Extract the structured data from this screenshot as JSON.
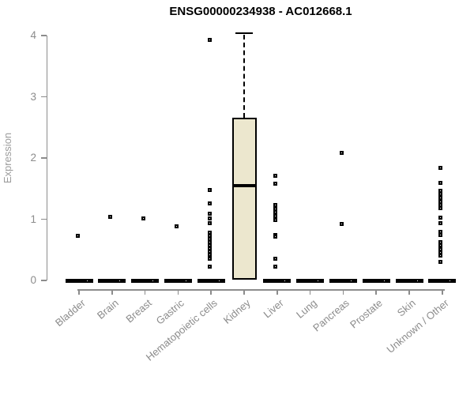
{
  "page": {
    "background": "#ffffff"
  },
  "chart_data": {
    "type": "boxplot",
    "title": "ENSG00000234938 - AC012668.1",
    "ylabel": "Expression",
    "xlabel": "",
    "ylim": [
      0,
      4
    ],
    "yticks": [
      0,
      1,
      2,
      3,
      4
    ],
    "grid": false,
    "legend": null,
    "categories": [
      "Bladder",
      "Brain",
      "Breast",
      "Gastric",
      "Hematopoietic cells",
      "Kidney",
      "Liver",
      "Lung",
      "Pancreas",
      "Prostate",
      "Skin",
      "Unknown / Other"
    ],
    "zero_bar_categories": [
      "Bladder",
      "Brain",
      "Breast",
      "Gastric",
      "Hematopoietic cells",
      "Liver",
      "Lung",
      "Pancreas",
      "Prostate",
      "Skin",
      "Unknown / Other"
    ],
    "boxes": [
      {
        "category": "Kidney",
        "q1": 0.01,
        "median": 1.55,
        "q3": 2.66,
        "whisker_low": 0.01,
        "whisker_high": 4.04,
        "fill": "#ECE7CE"
      }
    ],
    "points": {
      "Bladder": [
        0.73,
        0
      ],
      "Brain": [
        1.04,
        0
      ],
      "Breast": [
        1.01,
        0
      ],
      "Gastric": [
        0.89,
        0
      ],
      "Hematopoietic cells": [
        3.93,
        1.48,
        1.26,
        1.09,
        1.01,
        0.93,
        0.78,
        0.73,
        0.68,
        0.63,
        0.58,
        0.52,
        0.47,
        0.42,
        0.36,
        0.23,
        0
      ],
      "Kidney": [],
      "Liver": [
        1.71,
        1.58,
        1.23,
        1.17,
        1.11,
        1.05,
        0.99,
        0.74,
        0.71,
        0.35,
        0.23,
        0
      ],
      "Lung": [
        0
      ],
      "Pancreas": [
        2.09,
        0.92,
        0
      ],
      "Prostate": [
        0
      ],
      "Skin": [
        0
      ],
      "Unknown / Other": [
        1.84,
        1.6,
        1.47,
        1.41,
        1.35,
        1.29,
        1.23,
        1.18,
        1.03,
        0.94,
        0.8,
        0.74,
        0.62,
        0.57,
        0.51,
        0.46,
        0.41,
        0.3,
        0
      ]
    },
    "colors": {
      "title": "#000000",
      "axis": "#8c8c8c",
      "tick_label": "#8c8c8c",
      "axis_label": "#9c9c9c",
      "box_fill": "#ECE7CE",
      "box_border": "#000000",
      "point": "#000000",
      "zero_bar": "#000000",
      "background": "#ffffff"
    }
  }
}
